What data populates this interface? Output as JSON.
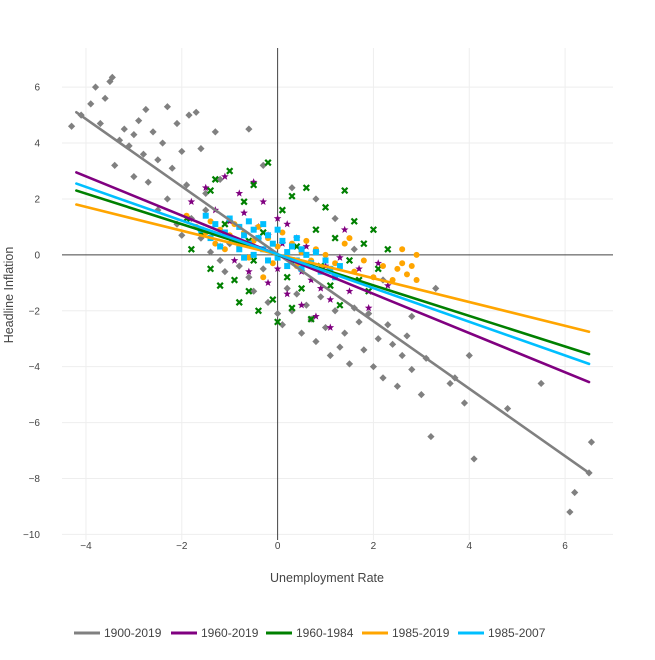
{
  "chart_data": {
    "type": "scatter",
    "title": "",
    "xlabel": "Unemployment Rate",
    "ylabel": "Headline Inflation",
    "xlim": [
      -4.5,
      7.0
    ],
    "ylim": [
      -10.2,
      7.4
    ],
    "x_ticks": [
      -4,
      -2,
      0,
      2,
      4,
      6
    ],
    "y_ticks": [
      -10,
      -8,
      -6,
      -4,
      -2,
      0,
      2,
      4,
      6
    ],
    "x_tick_labels": [
      "−4",
      "−2",
      "0",
      "2",
      "4",
      "6"
    ],
    "y_tick_labels": [
      "−10",
      "−8",
      "−6",
      "−4",
      "−2",
      "0",
      "2",
      "4",
      "6"
    ],
    "grid": true,
    "legend_position": "bottom",
    "series": [
      {
        "name": "1900-2019",
        "color": "#808080",
        "marker": "diamond",
        "fit_line": {
          "x": [
            -4.2,
            6.5
          ],
          "y": [
            5.1,
            -7.8
          ]
        },
        "points": [
          [
            -4.3,
            4.6
          ],
          [
            -4.1,
            5.0
          ],
          [
            -3.9,
            5.4
          ],
          [
            -3.8,
            6.0
          ],
          [
            -3.6,
            5.6
          ],
          [
            -3.5,
            6.2
          ],
          [
            -3.45,
            6.35
          ],
          [
            -3.7,
            4.7
          ],
          [
            -3.3,
            4.1
          ],
          [
            -3.2,
            4.5
          ],
          [
            -3.1,
            3.9
          ],
          [
            -3.0,
            4.3
          ],
          [
            -2.9,
            4.8
          ],
          [
            -2.8,
            3.6
          ],
          [
            -2.75,
            5.2
          ],
          [
            -2.6,
            4.4
          ],
          [
            -2.5,
            3.4
          ],
          [
            -2.4,
            4.0
          ],
          [
            -2.3,
            5.3
          ],
          [
            -2.2,
            3.1
          ],
          [
            -2.1,
            4.7
          ],
          [
            -2.0,
            3.7
          ],
          [
            -1.9,
            2.5
          ],
          [
            -1.85,
            5.0
          ],
          [
            -1.7,
            5.1
          ],
          [
            -1.6,
            3.8
          ],
          [
            -1.5,
            2.2
          ],
          [
            -1.3,
            4.4
          ],
          [
            -1.2,
            2.7
          ],
          [
            -0.6,
            4.5
          ],
          [
            -3.4,
            3.2
          ],
          [
            -3.0,
            2.8
          ],
          [
            -2.7,
            2.6
          ],
          [
            -2.5,
            1.6
          ],
          [
            -2.3,
            2.0
          ],
          [
            -2.1,
            1.1
          ],
          [
            -1.8,
            1.3
          ],
          [
            -1.6,
            0.6
          ],
          [
            -1.4,
            0.1
          ],
          [
            -1.2,
            -0.2
          ],
          [
            -1.0,
            0.4
          ],
          [
            -0.8,
            -0.4
          ],
          [
            -0.6,
            -0.8
          ],
          [
            -0.5,
            -1.3
          ],
          [
            -0.3,
            -0.5
          ],
          [
            -0.2,
            -1.7
          ],
          [
            0.0,
            -2.1
          ],
          [
            0.1,
            -2.5
          ],
          [
            0.2,
            -1.2
          ],
          [
            0.3,
            -2.0
          ],
          [
            0.4,
            -1.4
          ],
          [
            0.5,
            -2.8
          ],
          [
            0.6,
            -1.8
          ],
          [
            0.7,
            -2.3
          ],
          [
            0.8,
            -3.1
          ],
          [
            0.9,
            -1.5
          ],
          [
            1.0,
            -2.6
          ],
          [
            1.1,
            -3.6
          ],
          [
            1.2,
            -2.0
          ],
          [
            1.3,
            -3.3
          ],
          [
            1.4,
            -2.8
          ],
          [
            1.5,
            -3.9
          ],
          [
            1.6,
            -1.9
          ],
          [
            1.7,
            -2.4
          ],
          [
            1.8,
            -3.4
          ],
          [
            1.9,
            -2.1
          ],
          [
            2.0,
            -4.0
          ],
          [
            2.1,
            -3.0
          ],
          [
            2.2,
            -4.4
          ],
          [
            2.3,
            -2.5
          ],
          [
            2.4,
            -3.2
          ],
          [
            2.5,
            -4.7
          ],
          [
            2.6,
            -3.6
          ],
          [
            2.7,
            -2.9
          ],
          [
            2.8,
            -4.1
          ],
          [
            3.0,
            -5.0
          ],
          [
            3.1,
            -3.7
          ],
          [
            3.2,
            -6.5
          ],
          [
            3.3,
            -1.2
          ],
          [
            3.6,
            -4.6
          ],
          [
            3.7,
            -4.4
          ],
          [
            3.9,
            -5.3
          ],
          [
            4.0,
            -3.6
          ],
          [
            4.1,
            -7.3
          ],
          [
            4.8,
            -5.5
          ],
          [
            5.5,
            -4.6
          ],
          [
            6.1,
            -9.2
          ],
          [
            6.2,
            -8.5
          ],
          [
            6.5,
            -7.8
          ],
          [
            6.55,
            -6.7
          ],
          [
            -0.3,
            3.2
          ],
          [
            0.3,
            2.4
          ],
          [
            0.8,
            2.0
          ],
          [
            1.2,
            1.3
          ],
          [
            0.5,
            -0.3
          ],
          [
            -0.4,
            0.6
          ],
          [
            -1.1,
            -0.6
          ],
          [
            -1.5,
            1.6
          ],
          [
            -2.0,
            0.7
          ],
          [
            1.6,
            0.2
          ],
          [
            2.2,
            -0.9
          ],
          [
            2.8,
            -2.2
          ]
        ]
      },
      {
        "name": "1960-2019",
        "color": "#800080",
        "marker": "star",
        "fit_line": {
          "x": [
            -4.2,
            6.5
          ],
          "y": [
            2.95,
            -4.55
          ]
        },
        "points": [
          [
            -1.8,
            1.9
          ],
          [
            -1.5,
            2.4
          ],
          [
            -1.3,
            1.6
          ],
          [
            -1.1,
            2.8
          ],
          [
            -1.0,
            1.2
          ],
          [
            -0.8,
            2.2
          ],
          [
            -0.7,
            1.5
          ],
          [
            -0.5,
            2.6
          ],
          [
            -0.4,
            1.0
          ],
          [
            -0.3,
            1.9
          ],
          [
            -0.2,
            0.7
          ],
          [
            0.0,
            1.3
          ],
          [
            0.1,
            0.4
          ],
          [
            0.2,
            1.1
          ],
          [
            0.3,
            -0.2
          ],
          [
            0.4,
            0.6
          ],
          [
            0.5,
            -0.6
          ],
          [
            0.6,
            0.3
          ],
          [
            0.7,
            -0.9
          ],
          [
            0.8,
            0.1
          ],
          [
            0.9,
            -1.2
          ],
          [
            1.0,
            -0.4
          ],
          [
            1.1,
            -1.6
          ],
          [
            1.2,
            -0.8
          ],
          [
            1.3,
            -0.1
          ],
          [
            1.5,
            -1.3
          ],
          [
            1.7,
            -0.5
          ],
          [
            1.9,
            -1.9
          ],
          [
            2.1,
            -0.3
          ],
          [
            2.3,
            -1.1
          ],
          [
            -0.6,
            -0.6
          ],
          [
            -0.2,
            -1.0
          ],
          [
            0.2,
            -1.4
          ],
          [
            0.5,
            -1.8
          ],
          [
            0.8,
            -2.2
          ],
          [
            1.1,
            -2.6
          ],
          [
            -1.2,
            0.3
          ],
          [
            -0.9,
            -0.2
          ],
          [
            1.4,
            0.9
          ],
          [
            0.0,
            -0.5
          ]
        ]
      },
      {
        "name": "1960-1984",
        "color": "#008000",
        "marker": "x",
        "fit_line": {
          "x": [
            -4.2,
            6.5
          ],
          "y": [
            2.3,
            -3.55
          ]
        },
        "points": [
          [
            -1.9,
            1.3
          ],
          [
            -1.8,
            0.2
          ],
          [
            -1.4,
            2.3
          ],
          [
            -1.4,
            -0.5
          ],
          [
            -1.3,
            2.7
          ],
          [
            -1.2,
            -1.1
          ],
          [
            -1.1,
            1.1
          ],
          [
            -1.0,
            3.0
          ],
          [
            -0.9,
            -0.9
          ],
          [
            -0.8,
            -1.7
          ],
          [
            -0.7,
            1.9
          ],
          [
            -0.6,
            -1.3
          ],
          [
            -0.5,
            2.5
          ],
          [
            -0.5,
            -0.2
          ],
          [
            -0.4,
            -2.0
          ],
          [
            -0.3,
            0.8
          ],
          [
            -0.2,
            3.3
          ],
          [
            -0.1,
            -1.6
          ],
          [
            0.0,
            -2.4
          ],
          [
            0.1,
            1.6
          ],
          [
            0.2,
            -0.8
          ],
          [
            0.3,
            2.1
          ],
          [
            0.3,
            -1.9
          ],
          [
            0.4,
            0.3
          ],
          [
            0.5,
            -1.2
          ],
          [
            0.6,
            2.4
          ],
          [
            0.7,
            -2.3
          ],
          [
            0.8,
            0.9
          ],
          [
            0.9,
            -0.4
          ],
          [
            1.0,
            1.7
          ],
          [
            1.1,
            -1.1
          ],
          [
            1.2,
            0.6
          ],
          [
            1.3,
            -1.8
          ],
          [
            1.4,
            2.3
          ],
          [
            1.5,
            -0.2
          ],
          [
            1.6,
            1.2
          ],
          [
            1.7,
            -0.9
          ],
          [
            1.8,
            0.4
          ],
          [
            1.9,
            -1.3
          ],
          [
            2.0,
            0.9
          ],
          [
            2.1,
            -0.5
          ],
          [
            2.3,
            0.2
          ],
          [
            -1.6,
            0.8
          ],
          [
            -0.6,
            0.5
          ],
          [
            0.3,
            -0.2
          ]
        ]
      },
      {
        "name": "1985-2019",
        "color": "#FFA500",
        "marker": "circle",
        "fit_line": {
          "x": [
            -4.2,
            6.5
          ],
          "y": [
            1.8,
            -2.75
          ]
        },
        "points": [
          [
            -1.9,
            1.4
          ],
          [
            -1.7,
            1.0
          ],
          [
            -1.5,
            0.8
          ],
          [
            -1.4,
            1.2
          ],
          [
            -1.3,
            0.4
          ],
          [
            -1.2,
            0.9
          ],
          [
            -1.1,
            0.2
          ],
          [
            -1.0,
            0.7
          ],
          [
            -0.9,
            1.1
          ],
          [
            -0.8,
            0.3
          ],
          [
            -0.7,
            0.8
          ],
          [
            -0.6,
            -0.1
          ],
          [
            -0.5,
            0.5
          ],
          [
            -0.4,
            1.0
          ],
          [
            -0.3,
            0.2
          ],
          [
            -0.2,
            0.6
          ],
          [
            -0.1,
            -0.3
          ],
          [
            0.0,
            0.3
          ],
          [
            0.1,
            0.8
          ],
          [
            0.2,
            -0.1
          ],
          [
            0.3,
            0.4
          ],
          [
            0.4,
            -0.4
          ],
          [
            0.5,
            0.1
          ],
          [
            0.6,
            0.5
          ],
          [
            0.7,
            -0.2
          ],
          [
            0.8,
            0.2
          ],
          [
            0.9,
            -0.5
          ],
          [
            1.0,
            0.0
          ],
          [
            1.2,
            -0.3
          ],
          [
            1.4,
            0.4
          ],
          [
            1.6,
            -0.6
          ],
          [
            1.8,
            -0.2
          ],
          [
            2.0,
            -0.8
          ],
          [
            2.2,
            -0.4
          ],
          [
            2.4,
            -0.9
          ],
          [
            2.5,
            -0.5
          ],
          [
            2.6,
            -0.3
          ],
          [
            2.6,
            0.2
          ],
          [
            2.7,
            -0.7
          ],
          [
            2.8,
            -0.4
          ],
          [
            2.9,
            0.0
          ],
          [
            2.9,
            -0.9
          ],
          [
            1.5,
            0.6
          ],
          [
            -0.3,
            -0.8
          ]
        ]
      },
      {
        "name": "1985-2007",
        "color": "#00BFFF",
        "marker": "square",
        "fit_line": {
          "x": [
            -4.2,
            6.5
          ],
          "y": [
            2.55,
            -3.9
          ]
        },
        "points": [
          [
            -1.6,
            0.9
          ],
          [
            -1.4,
            0.6
          ],
          [
            -1.3,
            1.1
          ],
          [
            -1.2,
            0.3
          ],
          [
            -1.1,
            0.8
          ],
          [
            -1.0,
            1.3
          ],
          [
            -0.9,
            0.5
          ],
          [
            -0.8,
            1.0
          ],
          [
            -0.8,
            0.2
          ],
          [
            -0.7,
            0.7
          ],
          [
            -0.6,
            1.2
          ],
          [
            -0.6,
            0.4
          ],
          [
            -0.5,
            0.9
          ],
          [
            -0.5,
            0.0
          ],
          [
            -0.4,
            0.6
          ],
          [
            -0.3,
            1.1
          ],
          [
            -0.3,
            0.2
          ],
          [
            -0.2,
            0.7
          ],
          [
            -0.2,
            -0.2
          ],
          [
            -0.1,
            0.4
          ],
          [
            0.0,
            0.9
          ],
          [
            0.0,
            -0.1
          ],
          [
            0.1,
            0.5
          ],
          [
            0.2,
            0.1
          ],
          [
            0.2,
            -0.4
          ],
          [
            0.3,
            0.3
          ],
          [
            0.4,
            -0.2
          ],
          [
            0.5,
            0.2
          ],
          [
            0.5,
            -0.5
          ],
          [
            0.6,
            0.0
          ],
          [
            0.7,
            -0.3
          ],
          [
            0.8,
            0.1
          ],
          [
            0.9,
            -0.6
          ],
          [
            1.0,
            -0.2
          ],
          [
            1.1,
            -0.5
          ],
          [
            1.2,
            -0.8
          ],
          [
            1.3,
            -0.4
          ],
          [
            -0.7,
            -0.1
          ],
          [
            -1.5,
            1.4
          ],
          [
            0.4,
            0.6
          ]
        ]
      }
    ]
  }
}
